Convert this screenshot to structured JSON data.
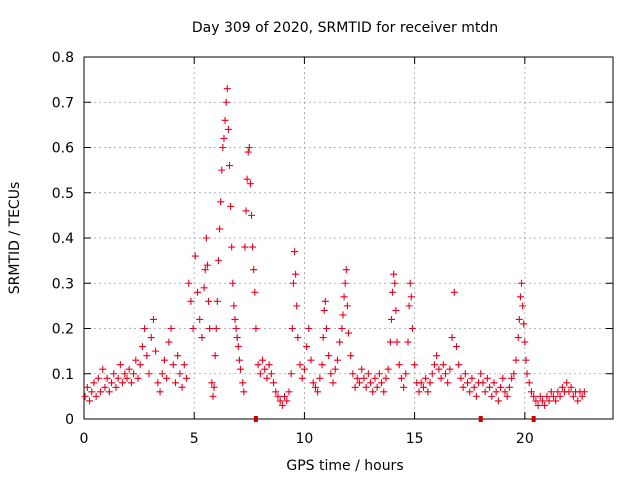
{
  "chart_data": {
    "type": "scatter",
    "title": "Day 309 of 2020, SRMTID for receiver mtdn",
    "xlabel": "GPS time / hours",
    "ylabel": "SRMTID / TECUs",
    "xlim": [
      0,
      24
    ],
    "ylim": [
      0,
      0.8
    ],
    "x_ticks": [
      "0",
      "5",
      "10",
      "15",
      "20"
    ],
    "y_ticks": [
      "0",
      "0.1",
      "0.2",
      "0.3",
      "0.4",
      "0.5",
      "0.6",
      "0.7",
      "0.8"
    ],
    "grid": true,
    "marker": "+",
    "marker_color": "#e8001c",
    "axis_markers_x": [
      7.8,
      18.0,
      20.4
    ],
    "series": [
      {
        "name": "SRMTID",
        "points": [
          [
            0.05,
            0.05
          ],
          [
            0.15,
            0.07
          ],
          [
            0.25,
            0.04
          ],
          [
            0.35,
            0.06
          ],
          [
            0.45,
            0.08
          ],
          [
            0.55,
            0.05
          ],
          [
            0.65,
            0.09
          ],
          [
            0.75,
            0.06
          ],
          [
            0.85,
            0.11
          ],
          [
            0.95,
            0.07
          ],
          [
            1.05,
            0.09
          ],
          [
            1.15,
            0.06
          ],
          [
            1.25,
            0.08
          ],
          [
            1.35,
            0.1
          ],
          [
            1.45,
            0.07
          ],
          [
            1.55,
            0.09
          ],
          [
            1.65,
            0.12
          ],
          [
            1.75,
            0.08
          ],
          [
            1.85,
            0.1
          ],
          [
            1.95,
            0.09
          ],
          [
            2.05,
            0.11
          ],
          [
            2.15,
            0.08
          ],
          [
            2.25,
            0.1
          ],
          [
            2.35,
            0.13
          ],
          [
            2.45,
            0.09
          ],
          [
            2.55,
            0.12
          ],
          [
            2.65,
            0.16
          ],
          [
            2.75,
            0.2
          ],
          [
            2.85,
            0.14
          ],
          [
            2.95,
            0.1
          ],
          [
            3.05,
            0.18
          ],
          [
            3.15,
            0.22
          ],
          [
            3.25,
            0.15
          ],
          [
            3.35,
            0.08
          ],
          [
            3.45,
            0.06
          ],
          [
            3.55,
            0.1
          ],
          [
            3.65,
            0.13
          ],
          [
            3.75,
            0.09
          ],
          [
            3.85,
            0.17
          ],
          [
            3.95,
            0.2
          ],
          [
            4.05,
            0.12
          ],
          [
            4.15,
            0.08
          ],
          [
            4.25,
            0.14
          ],
          [
            4.35,
            0.1
          ],
          [
            4.45,
            0.07
          ],
          [
            4.55,
            0.12
          ],
          [
            4.65,
            0.09
          ],
          [
            4.75,
            0.3
          ],
          [
            4.85,
            0.26
          ],
          [
            4.95,
            0.2
          ],
          [
            5.05,
            0.36
          ],
          [
            5.15,
            0.28
          ],
          [
            5.25,
            0.22
          ],
          [
            5.35,
            0.18
          ],
          [
            5.45,
            0.29
          ],
          [
            5.5,
            0.33
          ],
          [
            5.55,
            0.4
          ],
          [
            5.6,
            0.34
          ],
          [
            5.65,
            0.26
          ],
          [
            5.7,
            0.2
          ],
          [
            5.8,
            0.08
          ],
          [
            5.85,
            0.05
          ],
          [
            5.9,
            0.07
          ],
          [
            5.95,
            0.14
          ],
          [
            6.0,
            0.2
          ],
          [
            6.05,
            0.26
          ],
          [
            6.1,
            0.35
          ],
          [
            6.15,
            0.42
          ],
          [
            6.2,
            0.48
          ],
          [
            6.25,
            0.55
          ],
          [
            6.3,
            0.6
          ],
          [
            6.35,
            0.62
          ],
          [
            6.4,
            0.66
          ],
          [
            6.45,
            0.7
          ],
          [
            6.5,
            0.73
          ],
          [
            6.55,
            0.64
          ],
          [
            6.6,
            0.56
          ],
          [
            6.65,
            0.47
          ],
          [
            6.7,
            0.38
          ],
          [
            6.75,
            0.3
          ],
          [
            6.8,
            0.25
          ],
          [
            6.85,
            0.22
          ],
          [
            6.9,
            0.2
          ],
          [
            6.95,
            0.18
          ],
          [
            7.0,
            0.16
          ],
          [
            7.05,
            0.13
          ],
          [
            7.1,
            0.11
          ],
          [
            7.2,
            0.08
          ],
          [
            7.25,
            0.06
          ],
          [
            7.3,
            0.38
          ],
          [
            7.35,
            0.46
          ],
          [
            7.4,
            0.53
          ],
          [
            7.45,
            0.59
          ],
          [
            7.5,
            0.6
          ],
          [
            7.55,
            0.52
          ],
          [
            7.6,
            0.45
          ],
          [
            7.65,
            0.38
          ],
          [
            7.7,
            0.33
          ],
          [
            7.75,
            0.28
          ],
          [
            7.8,
            0.2
          ],
          [
            7.9,
            0.12
          ],
          [
            8.0,
            0.1
          ],
          [
            8.1,
            0.13
          ],
          [
            8.2,
            0.11
          ],
          [
            8.3,
            0.09
          ],
          [
            8.4,
            0.12
          ],
          [
            8.5,
            0.1
          ],
          [
            8.6,
            0.08
          ],
          [
            8.7,
            0.06
          ],
          [
            8.8,
            0.05
          ],
          [
            8.9,
            0.04
          ],
          [
            9.0,
            0.03
          ],
          [
            9.1,
            0.05
          ],
          [
            9.2,
            0.04
          ],
          [
            9.3,
            0.06
          ],
          [
            9.4,
            0.1
          ],
          [
            9.45,
            0.2
          ],
          [
            9.5,
            0.3
          ],
          [
            9.55,
            0.37
          ],
          [
            9.6,
            0.32
          ],
          [
            9.65,
            0.25
          ],
          [
            9.7,
            0.18
          ],
          [
            9.8,
            0.12
          ],
          [
            9.9,
            0.09
          ],
          [
            10.0,
            0.11
          ],
          [
            10.1,
            0.16
          ],
          [
            10.2,
            0.2
          ],
          [
            10.3,
            0.13
          ],
          [
            10.4,
            0.08
          ],
          [
            10.5,
            0.07
          ],
          [
            10.6,
            0.06
          ],
          [
            10.7,
            0.09
          ],
          [
            10.8,
            0.12
          ],
          [
            10.85,
            0.18
          ],
          [
            10.9,
            0.24
          ],
          [
            10.95,
            0.26
          ],
          [
            11.0,
            0.2
          ],
          [
            11.1,
            0.14
          ],
          [
            11.2,
            0.1
          ],
          [
            11.3,
            0.08
          ],
          [
            11.4,
            0.11
          ],
          [
            11.5,
            0.13
          ],
          [
            11.6,
            0.17
          ],
          [
            11.7,
            0.2
          ],
          [
            11.75,
            0.23
          ],
          [
            11.8,
            0.27
          ],
          [
            11.85,
            0.3
          ],
          [
            11.9,
            0.33
          ],
          [
            11.95,
            0.25
          ],
          [
            12.0,
            0.19
          ],
          [
            12.1,
            0.14
          ],
          [
            12.2,
            0.1
          ],
          [
            12.3,
            0.07
          ],
          [
            12.4,
            0.09
          ],
          [
            12.5,
            0.08
          ],
          [
            12.6,
            0.11
          ],
          [
            12.7,
            0.09
          ],
          [
            12.8,
            0.07
          ],
          [
            12.9,
            0.1
          ],
          [
            13.0,
            0.08
          ],
          [
            13.1,
            0.06
          ],
          [
            13.2,
            0.09
          ],
          [
            13.3,
            0.07
          ],
          [
            13.4,
            0.1
          ],
          [
            13.5,
            0.08
          ],
          [
            13.6,
            0.06
          ],
          [
            13.7,
            0.09
          ],
          [
            13.8,
            0.11
          ],
          [
            13.9,
            0.17
          ],
          [
            13.95,
            0.22
          ],
          [
            14.0,
            0.28
          ],
          [
            14.05,
            0.32
          ],
          [
            14.1,
            0.3
          ],
          [
            14.15,
            0.24
          ],
          [
            14.2,
            0.17
          ],
          [
            14.3,
            0.12
          ],
          [
            14.4,
            0.09
          ],
          [
            14.5,
            0.07
          ],
          [
            14.6,
            0.1
          ],
          [
            14.7,
            0.17
          ],
          [
            14.75,
            0.25
          ],
          [
            14.8,
            0.3
          ],
          [
            14.85,
            0.27
          ],
          [
            14.9,
            0.2
          ],
          [
            15.0,
            0.12
          ],
          [
            15.1,
            0.08
          ],
          [
            15.2,
            0.06
          ],
          [
            15.3,
            0.08
          ],
          [
            15.4,
            0.07
          ],
          [
            15.5,
            0.09
          ],
          [
            15.6,
            0.06
          ],
          [
            15.7,
            0.08
          ],
          [
            15.8,
            0.1
          ],
          [
            15.9,
            0.12
          ],
          [
            16.0,
            0.14
          ],
          [
            16.1,
            0.11
          ],
          [
            16.2,
            0.09
          ],
          [
            16.3,
            0.12
          ],
          [
            16.4,
            0.1
          ],
          [
            16.5,
            0.08
          ],
          [
            16.6,
            0.11
          ],
          [
            16.7,
            0.18
          ],
          [
            16.8,
            0.28
          ],
          [
            16.9,
            0.16
          ],
          [
            17.0,
            0.12
          ],
          [
            17.1,
            0.09
          ],
          [
            17.2,
            0.07
          ],
          [
            17.3,
            0.1
          ],
          [
            17.4,
            0.08
          ],
          [
            17.5,
            0.06
          ],
          [
            17.6,
            0.09
          ],
          [
            17.7,
            0.07
          ],
          [
            17.8,
            0.05
          ],
          [
            17.9,
            0.08
          ],
          [
            18.0,
            0.1
          ],
          [
            18.1,
            0.08
          ],
          [
            18.2,
            0.06
          ],
          [
            18.3,
            0.09
          ],
          [
            18.4,
            0.07
          ],
          [
            18.5,
            0.05
          ],
          [
            18.6,
            0.08
          ],
          [
            18.7,
            0.06
          ],
          [
            18.8,
            0.04
          ],
          [
            18.9,
            0.07
          ],
          [
            19.0,
            0.09
          ],
          [
            19.1,
            0.06
          ],
          [
            19.2,
            0.05
          ],
          [
            19.3,
            0.07
          ],
          [
            19.4,
            0.09
          ],
          [
            19.5,
            0.1
          ],
          [
            19.6,
            0.13
          ],
          [
            19.7,
            0.18
          ],
          [
            19.75,
            0.22
          ],
          [
            19.8,
            0.27
          ],
          [
            19.85,
            0.3
          ],
          [
            19.9,
            0.25
          ],
          [
            19.95,
            0.21
          ],
          [
            20.0,
            0.17
          ],
          [
            20.05,
            0.13
          ],
          [
            20.1,
            0.1
          ],
          [
            20.2,
            0.08
          ],
          [
            20.3,
            0.06
          ],
          [
            20.4,
            0.05
          ],
          [
            20.5,
            0.04
          ],
          [
            20.6,
            0.03
          ],
          [
            20.7,
            0.05
          ],
          [
            20.8,
            0.04
          ],
          [
            20.9,
            0.03
          ],
          [
            21.0,
            0.05
          ],
          [
            21.1,
            0.04
          ],
          [
            21.2,
            0.06
          ],
          [
            21.3,
            0.05
          ],
          [
            21.4,
            0.04
          ],
          [
            21.5,
            0.06
          ],
          [
            21.6,
            0.05
          ],
          [
            21.7,
            0.07
          ],
          [
            21.8,
            0.06
          ],
          [
            21.9,
            0.08
          ],
          [
            22.0,
            0.06
          ],
          [
            22.1,
            0.07
          ],
          [
            22.2,
            0.05
          ],
          [
            22.3,
            0.06
          ],
          [
            22.4,
            0.04
          ],
          [
            22.5,
            0.06
          ],
          [
            22.6,
            0.05
          ],
          [
            22.7,
            0.06
          ]
        ]
      }
    ]
  }
}
